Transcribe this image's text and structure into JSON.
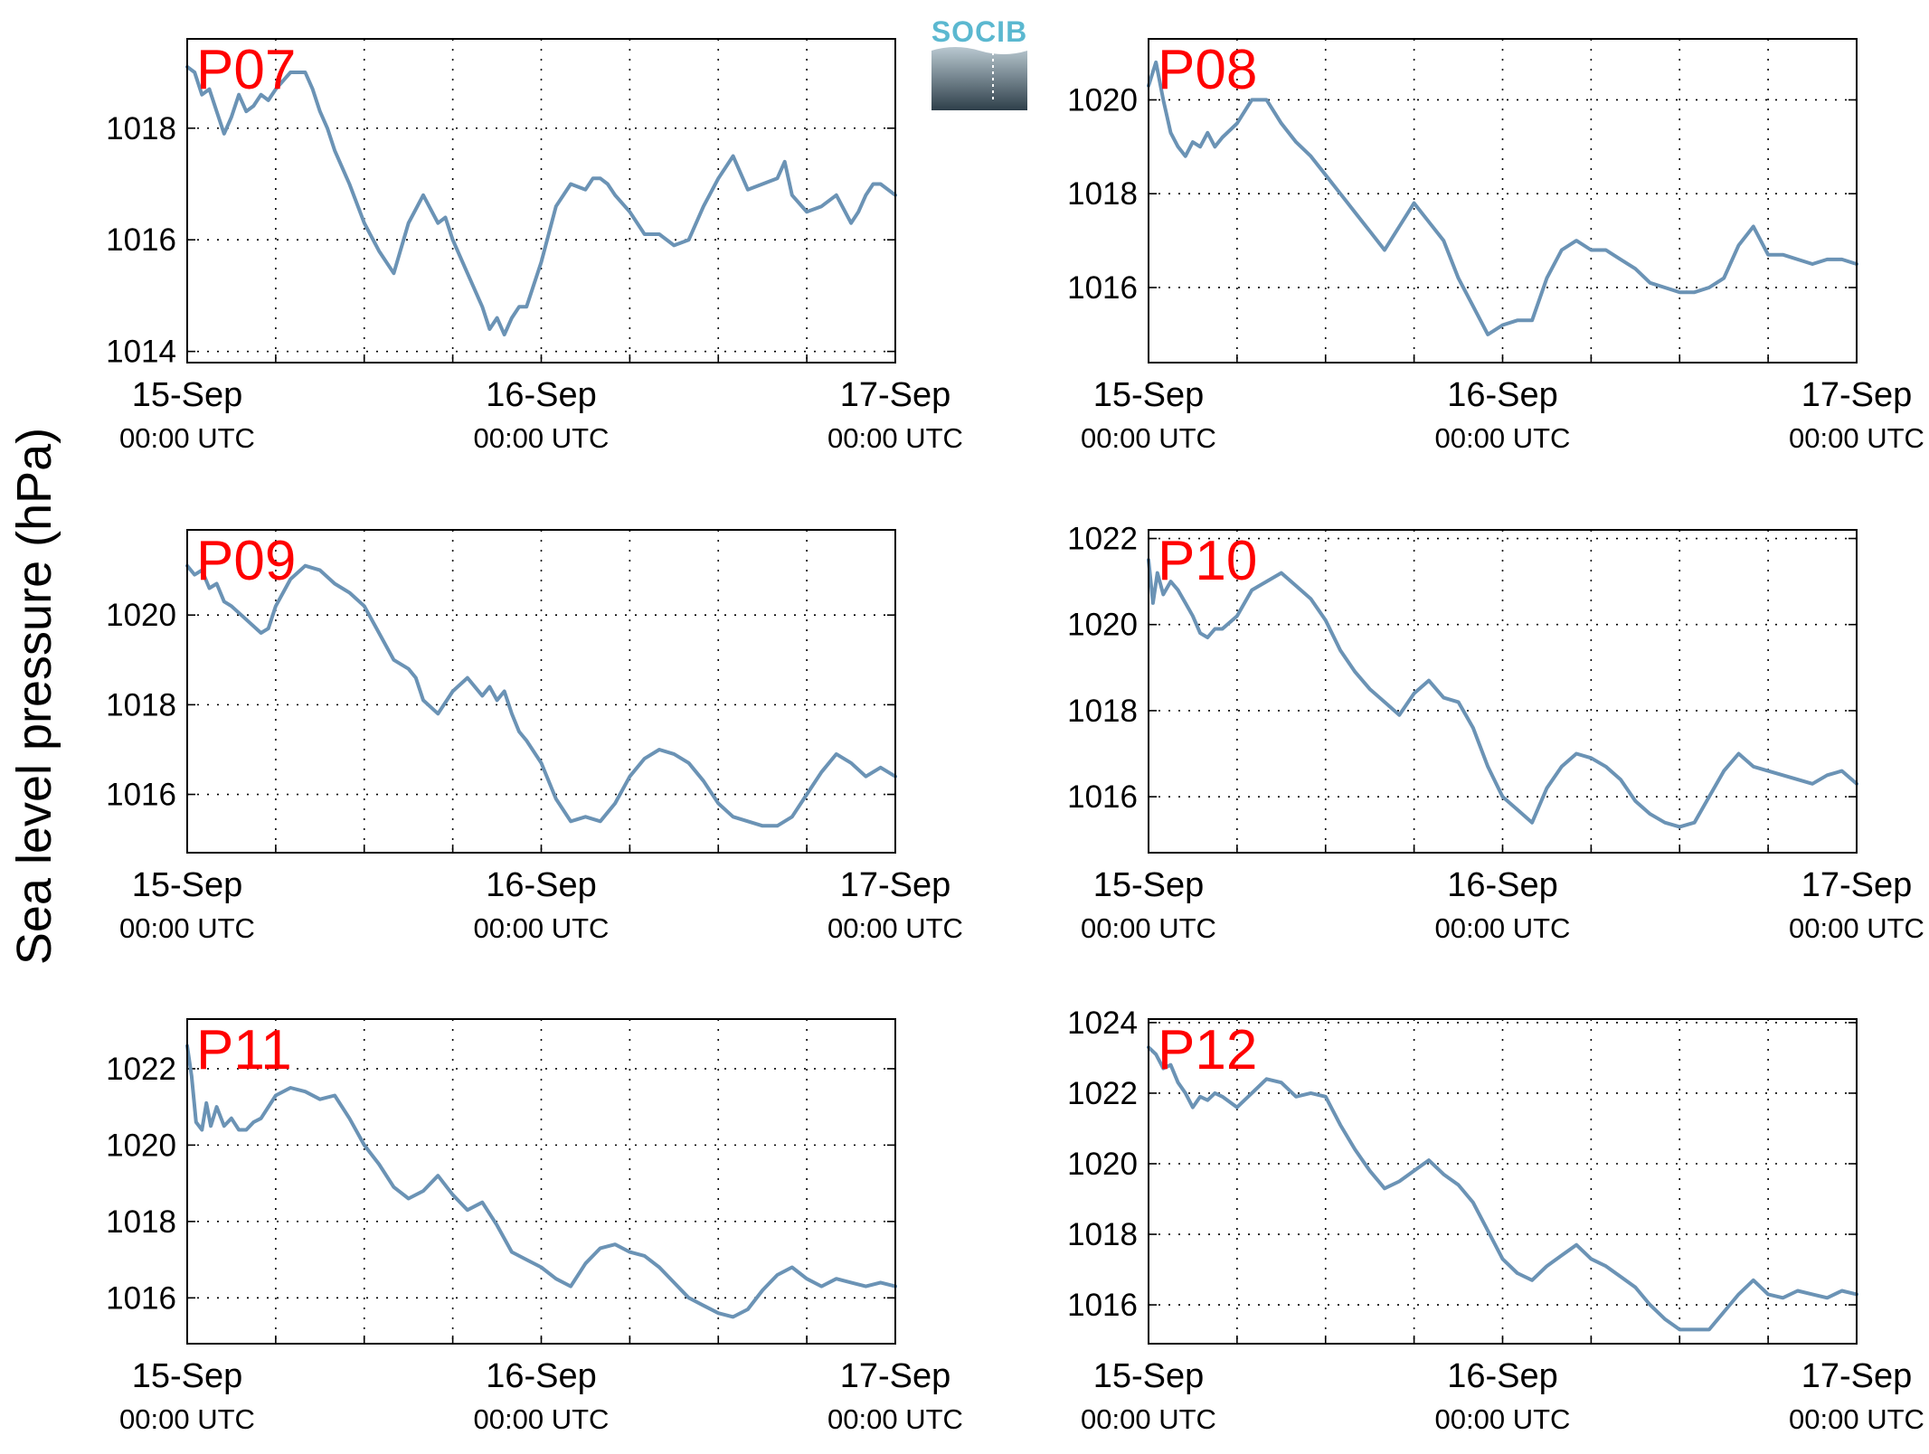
{
  "figure": {
    "ylabel": "Sea level pressure (hPa)",
    "logo_text": "SOCIB",
    "line_color": "#6b93b5",
    "label_color": "#ff0000"
  },
  "chart_data": [
    {
      "type": "line",
      "title": "P07",
      "x_ticks": [
        {
          "major": "15-Sep",
          "sub": "00:00 UTC",
          "hour": 0
        },
        {
          "major": "16-Sep",
          "sub": "00:00 UTC",
          "hour": 24
        },
        {
          "major": "17-Sep",
          "sub": "00:00 UTC",
          "hour": 48
        }
      ],
      "x_gridlines_hours": [
        6,
        12,
        18,
        24,
        30,
        36,
        42
      ],
      "xlim_hours": [
        0,
        48
      ],
      "ylim": [
        1013.8,
        1019.6
      ],
      "yticks": [
        1014,
        1016,
        1018
      ],
      "grid": true,
      "series": [
        {
          "x_hours": [
            0,
            0.5,
            1,
            1.5,
            2,
            2.5,
            3,
            3.5,
            4,
            4.5,
            5,
            5.5,
            6,
            7,
            8,
            8.5,
            9,
            9.5,
            10,
            11,
            12,
            13,
            14,
            15,
            16,
            17,
            17.5,
            18,
            19,
            20,
            20.5,
            21,
            21.5,
            22,
            22.5,
            23,
            24,
            25,
            26,
            27,
            27.5,
            28,
            28.5,
            29,
            30,
            31,
            32,
            33,
            34,
            35,
            36,
            37,
            38,
            39,
            40,
            40.5,
            41,
            42,
            43,
            44,
            45,
            45.5,
            46,
            46.5,
            47,
            48
          ],
          "values": [
            1019.1,
            1019.0,
            1018.6,
            1018.7,
            1018.3,
            1017.9,
            1018.2,
            1018.6,
            1018.3,
            1018.4,
            1018.6,
            1018.5,
            1018.7,
            1019.0,
            1019.0,
            1018.7,
            1018.3,
            1018.0,
            1017.6,
            1017.0,
            1016.3,
            1015.8,
            1015.4,
            1016.3,
            1016.8,
            1016.3,
            1016.4,
            1016.0,
            1015.4,
            1014.8,
            1014.4,
            1014.6,
            1014.3,
            1014.6,
            1014.8,
            1014.8,
            1015.6,
            1016.6,
            1017.0,
            1016.9,
            1017.1,
            1017.1,
            1017.0,
            1016.8,
            1016.5,
            1016.1,
            1016.1,
            1015.9,
            1016.0,
            1016.6,
            1017.1,
            1017.5,
            1016.9,
            1017.0,
            1017.1,
            1017.4,
            1016.8,
            1016.5,
            1016.6,
            1016.8,
            1016.3,
            1016.5,
            1016.8,
            1017.0,
            1017.0,
            1016.8
          ]
        }
      ]
    },
    {
      "type": "line",
      "title": "P08",
      "x_ticks": [
        {
          "major": "15-Sep",
          "sub": "00:00 UTC",
          "hour": 0
        },
        {
          "major": "16-Sep",
          "sub": "00:00 UTC",
          "hour": 24
        },
        {
          "major": "17-Sep",
          "sub": "00:00 UTC",
          "hour": 48
        }
      ],
      "x_gridlines_hours": [
        6,
        12,
        18,
        24,
        30,
        36,
        42
      ],
      "xlim_hours": [
        0,
        48
      ],
      "ylim": [
        1014.4,
        1021.3
      ],
      "yticks": [
        1016,
        1018,
        1020
      ],
      "grid": true,
      "series": [
        {
          "x_hours": [
            0,
            0.5,
            1,
            1.5,
            2,
            2.5,
            3,
            3.5,
            4,
            4.5,
            5,
            6,
            7,
            8,
            9,
            10,
            11,
            12,
            13,
            14,
            15,
            16,
            17,
            18,
            19,
            20,
            21,
            22,
            23,
            24,
            25,
            26,
            27,
            28,
            29,
            30,
            31,
            32,
            33,
            34,
            35,
            36,
            37,
            38,
            39,
            40,
            41,
            42,
            43,
            44,
            45,
            46,
            47,
            48
          ],
          "values": [
            1020.3,
            1020.8,
            1020.0,
            1019.3,
            1019.0,
            1018.8,
            1019.1,
            1019.0,
            1019.3,
            1019.0,
            1019.2,
            1019.5,
            1020.0,
            1020.0,
            1019.5,
            1019.1,
            1018.8,
            1018.4,
            1018.0,
            1017.6,
            1017.2,
            1016.8,
            1017.3,
            1017.8,
            1017.4,
            1017.0,
            1016.2,
            1015.6,
            1015.0,
            1015.2,
            1015.3,
            1015.3,
            1016.2,
            1016.8,
            1017.0,
            1016.8,
            1016.8,
            1016.6,
            1016.4,
            1016.1,
            1016.0,
            1015.9,
            1015.9,
            1016.0,
            1016.2,
            1016.9,
            1017.3,
            1016.7,
            1016.7,
            1016.6,
            1016.5,
            1016.6,
            1016.6,
            1016.5
          ]
        }
      ]
    },
    {
      "type": "line",
      "title": "P09",
      "x_ticks": [
        {
          "major": "15-Sep",
          "sub": "00:00 UTC",
          "hour": 0
        },
        {
          "major": "16-Sep",
          "sub": "00:00 UTC",
          "hour": 24
        },
        {
          "major": "17-Sep",
          "sub": "00:00 UTC",
          "hour": 48
        }
      ],
      "x_gridlines_hours": [
        6,
        12,
        18,
        24,
        30,
        36,
        42
      ],
      "xlim_hours": [
        0,
        48
      ],
      "ylim": [
        1014.7,
        1021.9
      ],
      "yticks": [
        1016,
        1018,
        1020
      ],
      "grid": true,
      "series": [
        {
          "x_hours": [
            0,
            0.5,
            1,
            1.5,
            2,
            2.5,
            3,
            4,
            5,
            5.5,
            6,
            7,
            8,
            9,
            10,
            11,
            12,
            13,
            14,
            15,
            15.5,
            16,
            17,
            18,
            19,
            20,
            20.5,
            21,
            21.5,
            22,
            22.5,
            23,
            24,
            25,
            26,
            27,
            28,
            29,
            30,
            31,
            32,
            33,
            34,
            35,
            36,
            37,
            38,
            39,
            40,
            41,
            42,
            43,
            44,
            45,
            46,
            47,
            48
          ],
          "values": [
            1021.1,
            1020.9,
            1021.0,
            1020.6,
            1020.7,
            1020.3,
            1020.2,
            1019.9,
            1019.6,
            1019.7,
            1020.2,
            1020.8,
            1021.1,
            1021.0,
            1020.7,
            1020.5,
            1020.2,
            1019.6,
            1019.0,
            1018.8,
            1018.6,
            1018.1,
            1017.8,
            1018.3,
            1018.6,
            1018.2,
            1018.4,
            1018.1,
            1018.3,
            1017.8,
            1017.4,
            1017.2,
            1016.7,
            1015.9,
            1015.4,
            1015.5,
            1015.4,
            1015.8,
            1016.4,
            1016.8,
            1017.0,
            1016.9,
            1016.7,
            1016.3,
            1015.8,
            1015.5,
            1015.4,
            1015.3,
            1015.3,
            1015.5,
            1016.0,
            1016.5,
            1016.9,
            1016.7,
            1016.4,
            1016.6,
            1016.4
          ]
        }
      ]
    },
    {
      "type": "line",
      "title": "P10",
      "x_ticks": [
        {
          "major": "15-Sep",
          "sub": "00:00 UTC",
          "hour": 0
        },
        {
          "major": "16-Sep",
          "sub": "00:00 UTC",
          "hour": 24
        },
        {
          "major": "17-Sep",
          "sub": "00:00 UTC",
          "hour": 48
        }
      ],
      "x_gridlines_hours": [
        6,
        12,
        18,
        24,
        30,
        36,
        42
      ],
      "xlim_hours": [
        0,
        48
      ],
      "ylim": [
        1014.7,
        1022.2
      ],
      "yticks": [
        1016,
        1018,
        1020,
        1022
      ],
      "grid": true,
      "series": [
        {
          "x_hours": [
            0,
            0.3,
            0.6,
            1,
            1.5,
            2,
            2.5,
            3,
            3.5,
            4,
            4.5,
            5,
            6,
            7,
            8,
            9,
            10,
            11,
            12,
            13,
            14,
            15,
            16,
            17,
            18,
            19,
            20,
            21,
            22,
            23,
            24,
            25,
            26,
            27,
            28,
            29,
            30,
            31,
            32,
            33,
            34,
            35,
            36,
            37,
            38,
            39,
            40,
            41,
            42,
            43,
            44,
            45,
            46,
            47,
            48
          ],
          "values": [
            1021.5,
            1020.5,
            1021.2,
            1020.7,
            1021.0,
            1020.8,
            1020.5,
            1020.2,
            1019.8,
            1019.7,
            1019.9,
            1019.9,
            1020.2,
            1020.8,
            1021.0,
            1021.2,
            1020.9,
            1020.6,
            1020.1,
            1019.4,
            1018.9,
            1018.5,
            1018.2,
            1017.9,
            1018.4,
            1018.7,
            1018.3,
            1018.2,
            1017.6,
            1016.7,
            1016.0,
            1015.7,
            1015.4,
            1016.2,
            1016.7,
            1017.0,
            1016.9,
            1016.7,
            1016.4,
            1015.9,
            1015.6,
            1015.4,
            1015.3,
            1015.4,
            1016.0,
            1016.6,
            1017.0,
            1016.7,
            1016.6,
            1016.5,
            1016.4,
            1016.3,
            1016.5,
            1016.6,
            1016.3
          ]
        }
      ]
    },
    {
      "type": "line",
      "title": "P11",
      "x_ticks": [
        {
          "major": "15-Sep",
          "sub": "00:00 UTC",
          "hour": 0
        },
        {
          "major": "16-Sep",
          "sub": "00:00 UTC",
          "hour": 24
        },
        {
          "major": "17-Sep",
          "sub": "00:00 UTC",
          "hour": 48
        }
      ],
      "x_gridlines_hours": [
        6,
        12,
        18,
        24,
        30,
        36,
        42
      ],
      "xlim_hours": [
        0,
        48
      ],
      "ylim": [
        1014.8,
        1023.3
      ],
      "yticks": [
        1016,
        1018,
        1020,
        1022
      ],
      "grid": true,
      "series": [
        {
          "x_hours": [
            0,
            0.3,
            0.6,
            1,
            1.3,
            1.6,
            2,
            2.5,
            3,
            3.5,
            4,
            4.5,
            5,
            6,
            7,
            8,
            9,
            10,
            11,
            12,
            13,
            14,
            15,
            16,
            17,
            18,
            19,
            20,
            21,
            22,
            23,
            24,
            25,
            26,
            27,
            28,
            29,
            30,
            31,
            32,
            33,
            34,
            35,
            36,
            37,
            38,
            39,
            40,
            41,
            42,
            43,
            44,
            45,
            46,
            47,
            48
          ],
          "values": [
            1022.6,
            1021.8,
            1020.6,
            1020.4,
            1021.1,
            1020.5,
            1021.0,
            1020.5,
            1020.7,
            1020.4,
            1020.4,
            1020.6,
            1020.7,
            1021.3,
            1021.5,
            1021.4,
            1021.2,
            1021.3,
            1020.7,
            1020.0,
            1019.5,
            1018.9,
            1018.6,
            1018.8,
            1019.2,
            1018.7,
            1018.3,
            1018.5,
            1017.9,
            1017.2,
            1017.0,
            1016.8,
            1016.5,
            1016.3,
            1016.9,
            1017.3,
            1017.4,
            1017.2,
            1017.1,
            1016.8,
            1016.4,
            1016.0,
            1015.8,
            1015.6,
            1015.5,
            1015.7,
            1016.2,
            1016.6,
            1016.8,
            1016.5,
            1016.3,
            1016.5,
            1016.4,
            1016.3,
            1016.4,
            1016.3
          ]
        }
      ]
    },
    {
      "type": "line",
      "title": "P12",
      "x_ticks": [
        {
          "major": "15-Sep",
          "sub": "00:00 UTC",
          "hour": 0
        },
        {
          "major": "16-Sep",
          "sub": "00:00 UTC",
          "hour": 24
        },
        {
          "major": "17-Sep",
          "sub": "00:00 UTC",
          "hour": 48
        }
      ],
      "x_gridlines_hours": [
        6,
        12,
        18,
        24,
        30,
        36,
        42
      ],
      "xlim_hours": [
        0,
        48
      ],
      "ylim": [
        1014.9,
        1024.1
      ],
      "yticks": [
        1016,
        1018,
        1020,
        1022,
        1024
      ],
      "grid": true,
      "series": [
        {
          "x_hours": [
            0,
            0.5,
            1,
            1.5,
            2,
            2.5,
            3,
            3.5,
            4,
            4.5,
            5,
            6,
            7,
            8,
            9,
            10,
            11,
            12,
            13,
            14,
            15,
            16,
            17,
            18,
            19,
            20,
            21,
            22,
            23,
            24,
            25,
            26,
            27,
            28,
            29,
            30,
            31,
            32,
            33,
            34,
            35,
            36,
            37,
            38,
            39,
            40,
            41,
            42,
            43,
            44,
            45,
            46,
            47,
            48
          ],
          "values": [
            1023.3,
            1023.1,
            1022.7,
            1022.8,
            1022.3,
            1022.0,
            1021.6,
            1021.9,
            1021.8,
            1022.0,
            1021.9,
            1021.6,
            1022.0,
            1022.4,
            1022.3,
            1021.9,
            1022.0,
            1021.9,
            1021.1,
            1020.4,
            1019.8,
            1019.3,
            1019.5,
            1019.8,
            1020.1,
            1019.7,
            1019.4,
            1018.9,
            1018.1,
            1017.3,
            1016.9,
            1016.7,
            1017.1,
            1017.4,
            1017.7,
            1017.3,
            1017.1,
            1016.8,
            1016.5,
            1016.0,
            1015.6,
            1015.3,
            1015.3,
            1015.3,
            1015.8,
            1016.3,
            1016.7,
            1016.3,
            1016.2,
            1016.4,
            1016.3,
            1016.2,
            1016.4,
            1016.3
          ]
        }
      ]
    }
  ]
}
